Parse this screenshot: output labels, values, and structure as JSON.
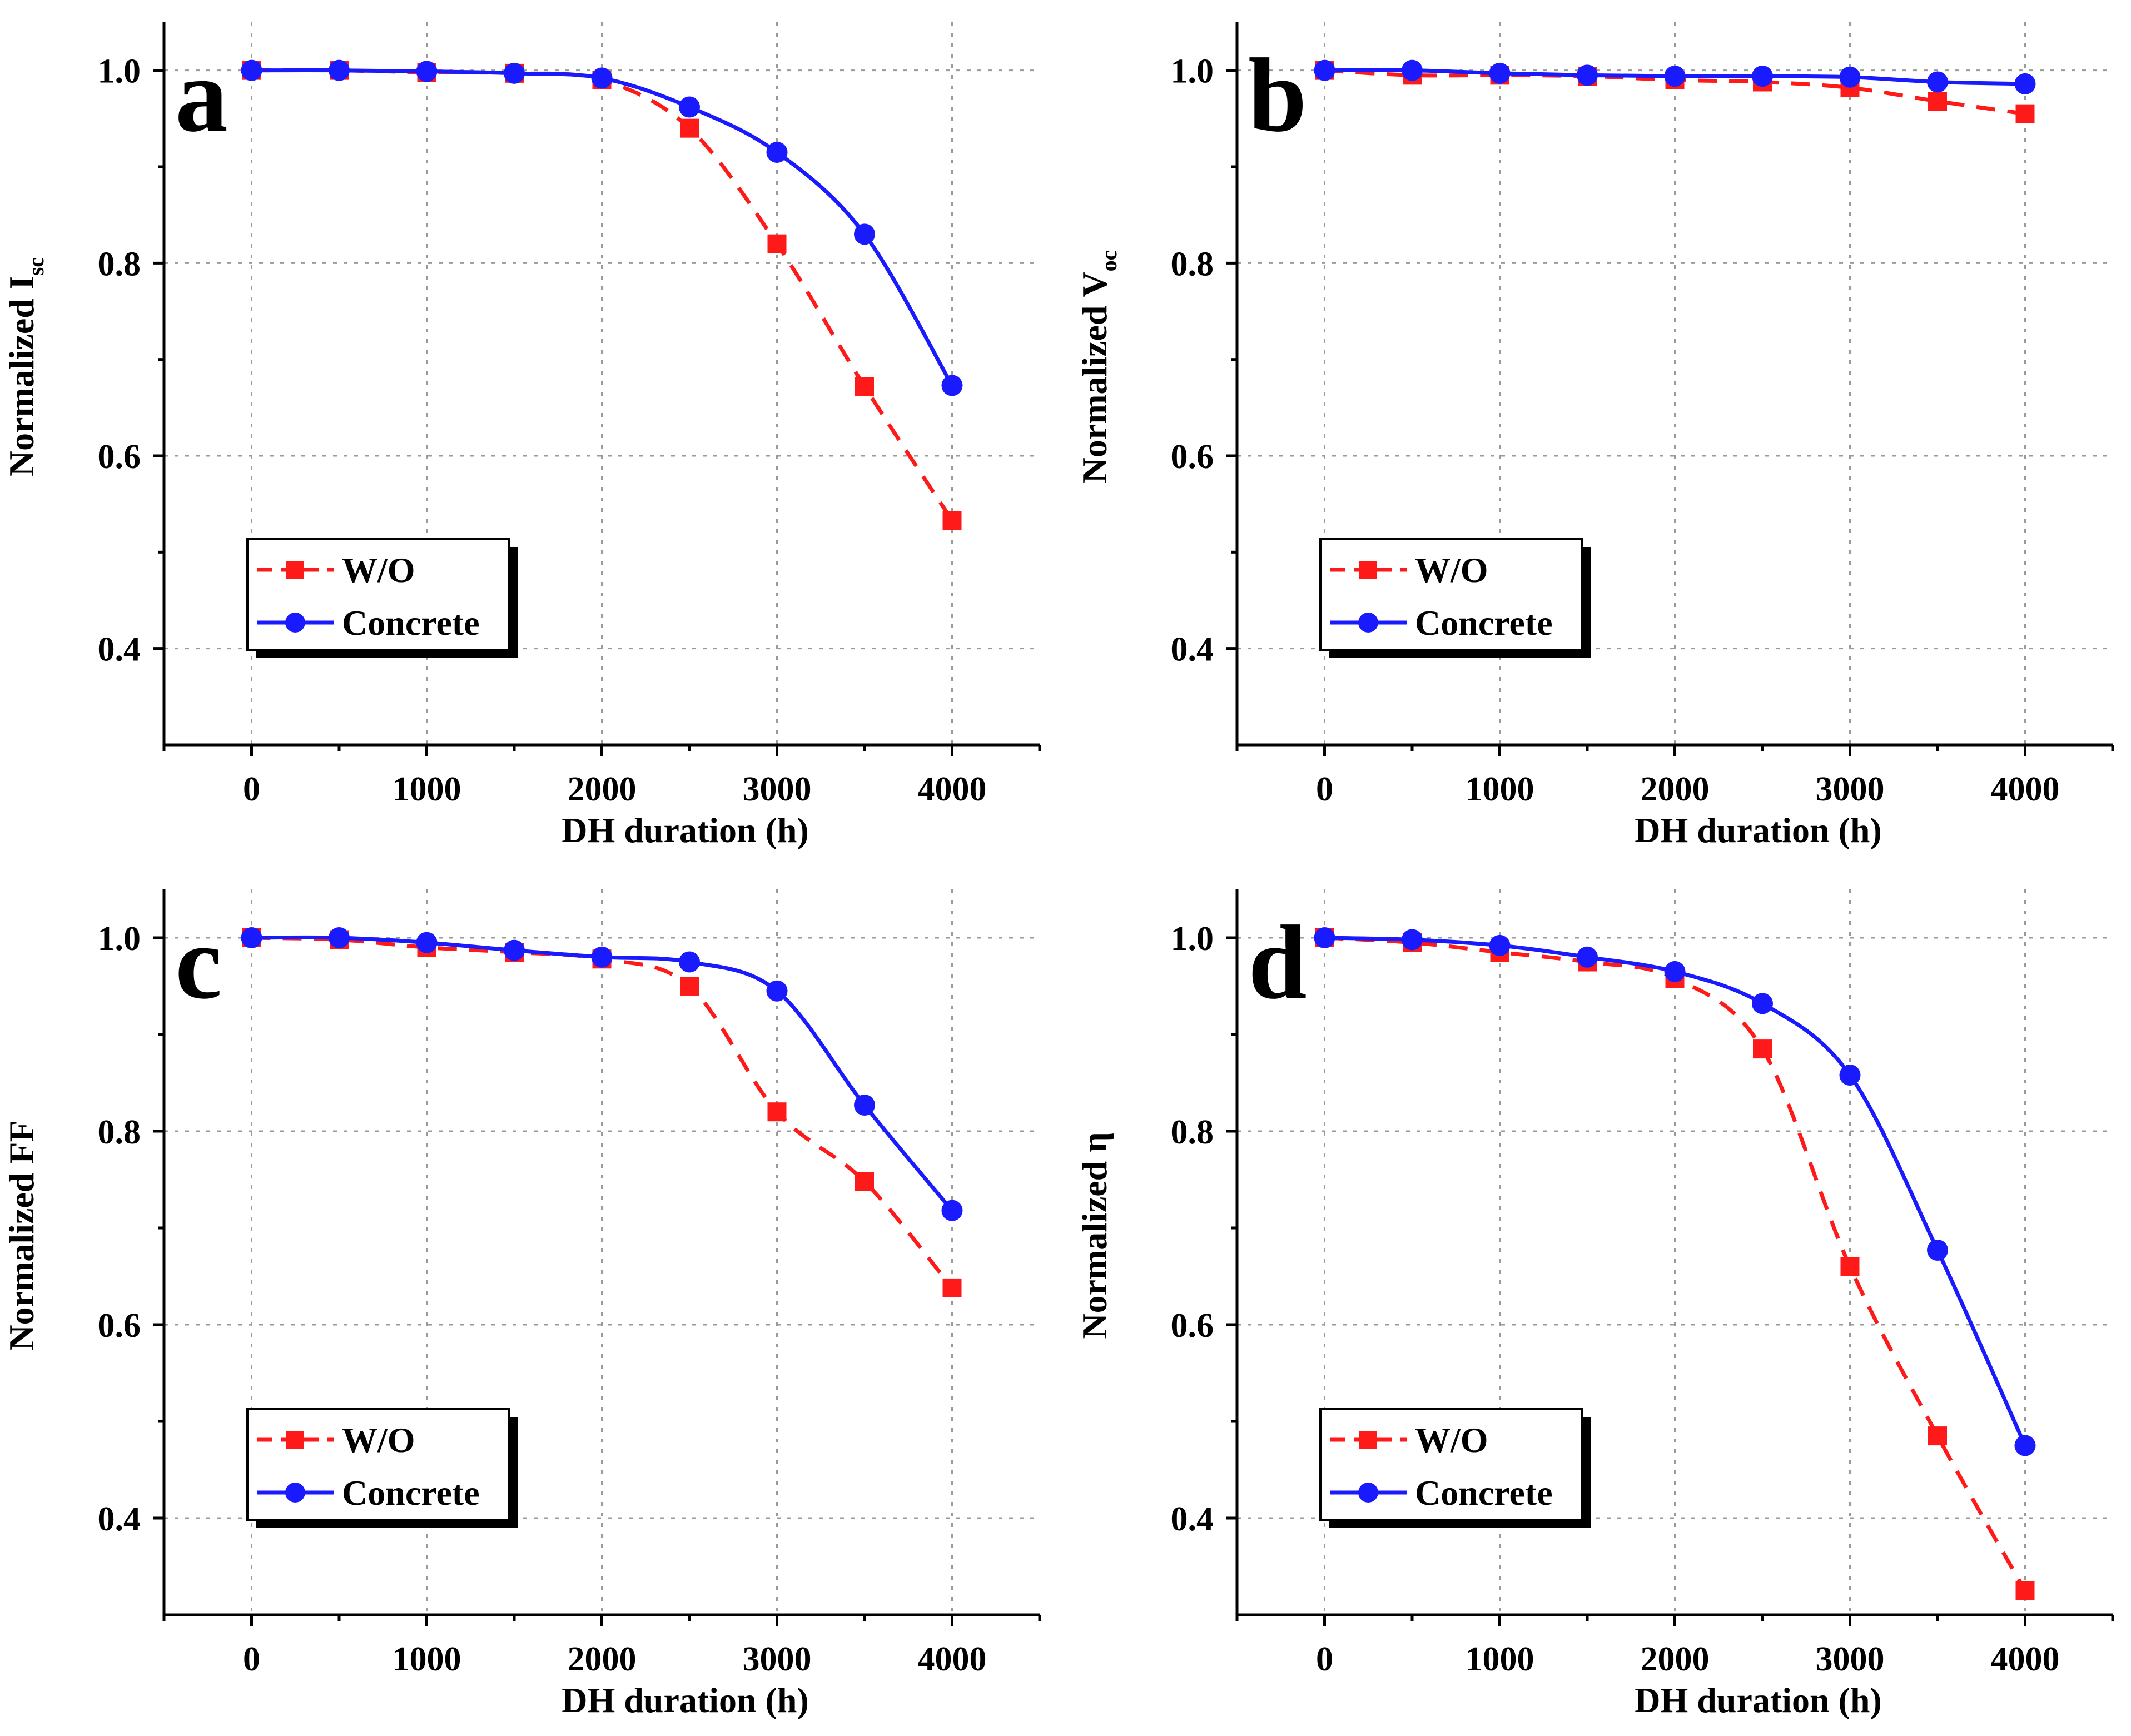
{
  "chart_data": [
    {
      "type": "line",
      "panel": "a",
      "xlabel": "DH duration (h)",
      "ylabel": "Normalized  I",
      "ylabel_sub": "sc",
      "xlim": [
        -500,
        4500
      ],
      "ylim": [
        0.3,
        1.05
      ],
      "xticks": [
        0,
        1000,
        2000,
        3000,
        4000
      ],
      "xtick_labels": [
        "0",
        "1000",
        "2000",
        "3000",
        "4000"
      ],
      "yticks": [
        0.4,
        0.6,
        0.8,
        1.0
      ],
      "ytick_labels": [
        "0.4",
        "0.6",
        "0.8",
        "1.0"
      ],
      "legend": [
        "W/O",
        "Concrete"
      ],
      "legend_position": "lower-left",
      "grid": true,
      "x": [
        0,
        500,
        1000,
        1500,
        2000,
        2500,
        3000,
        3500,
        4000
      ],
      "series": [
        {
          "name": "W/O",
          "color": "#ff1a1a",
          "marker": "square",
          "dash": true,
          "values": [
            1.0,
            1.0,
            0.998,
            0.997,
            0.99,
            0.94,
            0.82,
            0.672,
            0.533
          ]
        },
        {
          "name": "Concrete",
          "color": "#1a1aff",
          "marker": "circle",
          "dash": false,
          "values": [
            1.0,
            1.0,
            0.999,
            0.997,
            0.992,
            0.962,
            0.915,
            0.83,
            0.673
          ]
        }
      ]
    },
    {
      "type": "line",
      "panel": "b",
      "xlabel": "DH duration (h)",
      "ylabel": "Normalized  V",
      "ylabel_sub": "oc",
      "xlim": [
        -500,
        4500
      ],
      "ylim": [
        0.3,
        1.05
      ],
      "xticks": [
        0,
        1000,
        2000,
        3000,
        4000
      ],
      "xtick_labels": [
        "0",
        "1000",
        "2000",
        "3000",
        "4000"
      ],
      "yticks": [
        0.4,
        0.6,
        0.8,
        1.0
      ],
      "ytick_labels": [
        "0.4",
        "0.6",
        "0.8",
        "1.0"
      ],
      "legend": [
        "W/O",
        "Concrete"
      ],
      "legend_position": "lower-left",
      "grid": true,
      "x": [
        0,
        500,
        1000,
        1500,
        2000,
        2500,
        3000,
        3500,
        4000
      ],
      "series": [
        {
          "name": "W/O",
          "color": "#ff1a1a",
          "marker": "square",
          "dash": true,
          "values": [
            1.0,
            0.995,
            0.995,
            0.994,
            0.99,
            0.988,
            0.982,
            0.968,
            0.955
          ]
        },
        {
          "name": "Concrete",
          "color": "#1a1aff",
          "marker": "circle",
          "dash": false,
          "values": [
            1.0,
            1.0,
            0.997,
            0.995,
            0.994,
            0.994,
            0.993,
            0.988,
            0.986
          ]
        }
      ]
    },
    {
      "type": "line",
      "panel": "c",
      "xlabel": "DH duration (h)",
      "ylabel": "Normalized  FF",
      "ylabel_sub": "",
      "xlim": [
        -500,
        4500
      ],
      "ylim": [
        0.3,
        1.05
      ],
      "xticks": [
        0,
        1000,
        2000,
        3000,
        4000
      ],
      "xtick_labels": [
        "0",
        "1000",
        "2000",
        "3000",
        "4000"
      ],
      "yticks": [
        0.4,
        0.6,
        0.8,
        1.0
      ],
      "ytick_labels": [
        "0.4",
        "0.6",
        "0.8",
        "1.0"
      ],
      "legend": [
        "W/O",
        "Concrete"
      ],
      "legend_position": "lower-left",
      "grid": true,
      "x": [
        0,
        500,
        1000,
        1500,
        2000,
        2500,
        3000,
        3500,
        4000
      ],
      "series": [
        {
          "name": "W/O",
          "color": "#ff1a1a",
          "marker": "square",
          "dash": true,
          "values": [
            1.0,
            0.998,
            0.99,
            0.985,
            0.978,
            0.95,
            0.82,
            0.748,
            0.638
          ]
        },
        {
          "name": "Concrete",
          "color": "#1a1aff",
          "marker": "circle",
          "dash": false,
          "values": [
            1.0,
            1.0,
            0.995,
            0.987,
            0.98,
            0.975,
            0.945,
            0.827,
            0.718
          ]
        }
      ]
    },
    {
      "type": "line",
      "panel": "d",
      "xlabel": "DH duration (h)",
      "ylabel": "Normalized  η",
      "ylabel_sub": "",
      "xlim": [
        -500,
        4500
      ],
      "ylim": [
        0.3,
        1.05
      ],
      "xticks": [
        0,
        1000,
        2000,
        3000,
        4000
      ],
      "xtick_labels": [
        "0",
        "1000",
        "2000",
        "3000",
        "4000"
      ],
      "yticks": [
        0.4,
        0.6,
        0.8,
        1.0
      ],
      "ytick_labels": [
        "0.4",
        "0.6",
        "0.8",
        "1.0"
      ],
      "legend": [
        "W/O",
        "Concrete"
      ],
      "legend_position": "lower-left",
      "grid": true,
      "x": [
        0,
        500,
        1000,
        1500,
        2000,
        2500,
        3000,
        3500,
        4000
      ],
      "series": [
        {
          "name": "W/O",
          "color": "#ff1a1a",
          "marker": "square",
          "dash": true,
          "values": [
            1.0,
            0.995,
            0.985,
            0.975,
            0.958,
            0.885,
            0.66,
            0.485,
            0.325
          ]
        },
        {
          "name": "Concrete",
          "color": "#1a1aff",
          "marker": "circle",
          "dash": false,
          "values": [
            1.0,
            0.998,
            0.992,
            0.98,
            0.965,
            0.932,
            0.858,
            0.677,
            0.475
          ]
        }
      ]
    }
  ]
}
